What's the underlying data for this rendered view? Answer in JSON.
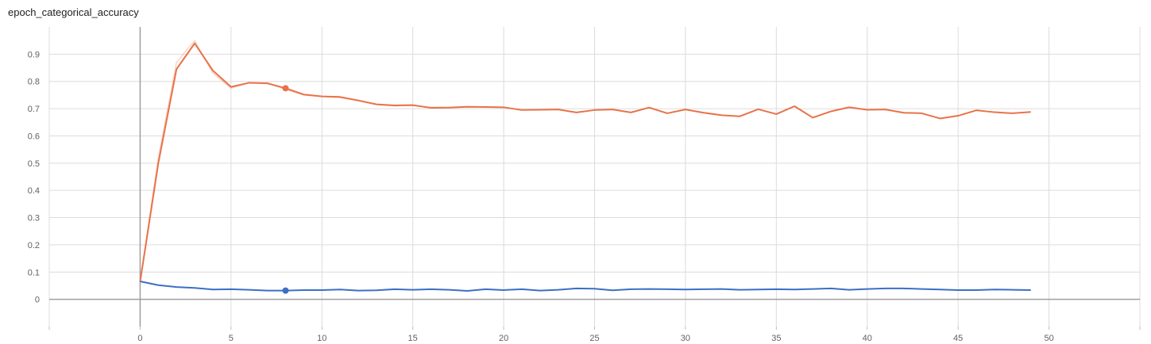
{
  "chart_data": {
    "type": "line",
    "title": "epoch_categorical_accuracy",
    "xlabel": "",
    "ylabel": "",
    "xlim": [
      -5,
      55
    ],
    "ylim": [
      -0.1,
      1.0
    ],
    "x_ticks": [
      0,
      5,
      10,
      15,
      20,
      25,
      30,
      35,
      40,
      45,
      50
    ],
    "y_ticks": [
      0,
      0.1,
      0.2,
      0.3,
      0.4,
      0.5,
      0.6,
      0.7,
      0.8,
      0.9
    ],
    "grid": true,
    "legend": "none",
    "series": [
      {
        "color": "#e8734a",
        "marker_at_x": 8,
        "x": [
          0,
          1,
          2,
          3,
          4,
          5,
          6,
          7,
          8,
          9,
          10,
          11,
          12,
          13,
          14,
          15,
          16,
          17,
          18,
          19,
          20,
          21,
          22,
          23,
          24,
          25,
          26,
          27,
          28,
          29,
          30,
          31,
          32,
          33,
          34,
          35,
          36,
          37,
          38,
          39,
          40,
          41,
          42,
          43,
          44,
          45,
          46,
          47,
          48,
          49
        ],
        "values": [
          0.065,
          0.5,
          0.845,
          0.94,
          0.84,
          0.78,
          0.795,
          0.793,
          0.775,
          0.752,
          0.745,
          0.743,
          0.73,
          0.716,
          0.712,
          0.713,
          0.703,
          0.704,
          0.707,
          0.706,
          0.705,
          0.695,
          0.696,
          0.697,
          0.686,
          0.695,
          0.697,
          0.686,
          0.704,
          0.683,
          0.697,
          0.685,
          0.676,
          0.672,
          0.698,
          0.68,
          0.709,
          0.667,
          0.69,
          0.705,
          0.696,
          0.697,
          0.685,
          0.683,
          0.664,
          0.674,
          0.694,
          0.687,
          0.683,
          0.688
        ],
        "raw_values": [
          0.065,
          0.52,
          0.87,
          0.95,
          0.83,
          0.775,
          0.795,
          0.795,
          0.77,
          0.75,
          0.745,
          0.74,
          0.73,
          0.715,
          0.71,
          0.712,
          0.705,
          0.705,
          0.708,
          0.706,
          0.705,
          0.695,
          0.696,
          0.697,
          0.686,
          0.695,
          0.697,
          0.686,
          0.704,
          0.683,
          0.697,
          0.685,
          0.676,
          0.672,
          0.698,
          0.68,
          0.709,
          0.667,
          0.69,
          0.705,
          0.696,
          0.697,
          0.685,
          0.683,
          0.664,
          0.674,
          0.694,
          0.687,
          0.683,
          0.688
        ]
      },
      {
        "color": "#3c6fc4",
        "marker_at_x": 8,
        "x": [
          0,
          1,
          2,
          3,
          4,
          5,
          6,
          7,
          8,
          9,
          10,
          11,
          12,
          13,
          14,
          15,
          16,
          17,
          18,
          19,
          20,
          21,
          22,
          23,
          24,
          25,
          26,
          27,
          28,
          29,
          30,
          31,
          32,
          33,
          34,
          35,
          36,
          37,
          38,
          39,
          40,
          41,
          42,
          43,
          44,
          45,
          46,
          47,
          48,
          49
        ],
        "values": [
          0.066,
          0.052,
          0.045,
          0.042,
          0.036,
          0.037,
          0.035,
          0.032,
          0.032,
          0.034,
          0.034,
          0.036,
          0.032,
          0.033,
          0.037,
          0.035,
          0.037,
          0.035,
          0.031,
          0.037,
          0.034,
          0.037,
          0.032,
          0.035,
          0.04,
          0.039,
          0.033,
          0.037,
          0.038,
          0.037,
          0.036,
          0.037,
          0.038,
          0.035,
          0.036,
          0.037,
          0.036,
          0.038,
          0.04,
          0.035,
          0.038,
          0.04,
          0.04,
          0.038,
          0.036,
          0.034,
          0.034,
          0.036,
          0.035,
          0.034
        ]
      }
    ]
  }
}
